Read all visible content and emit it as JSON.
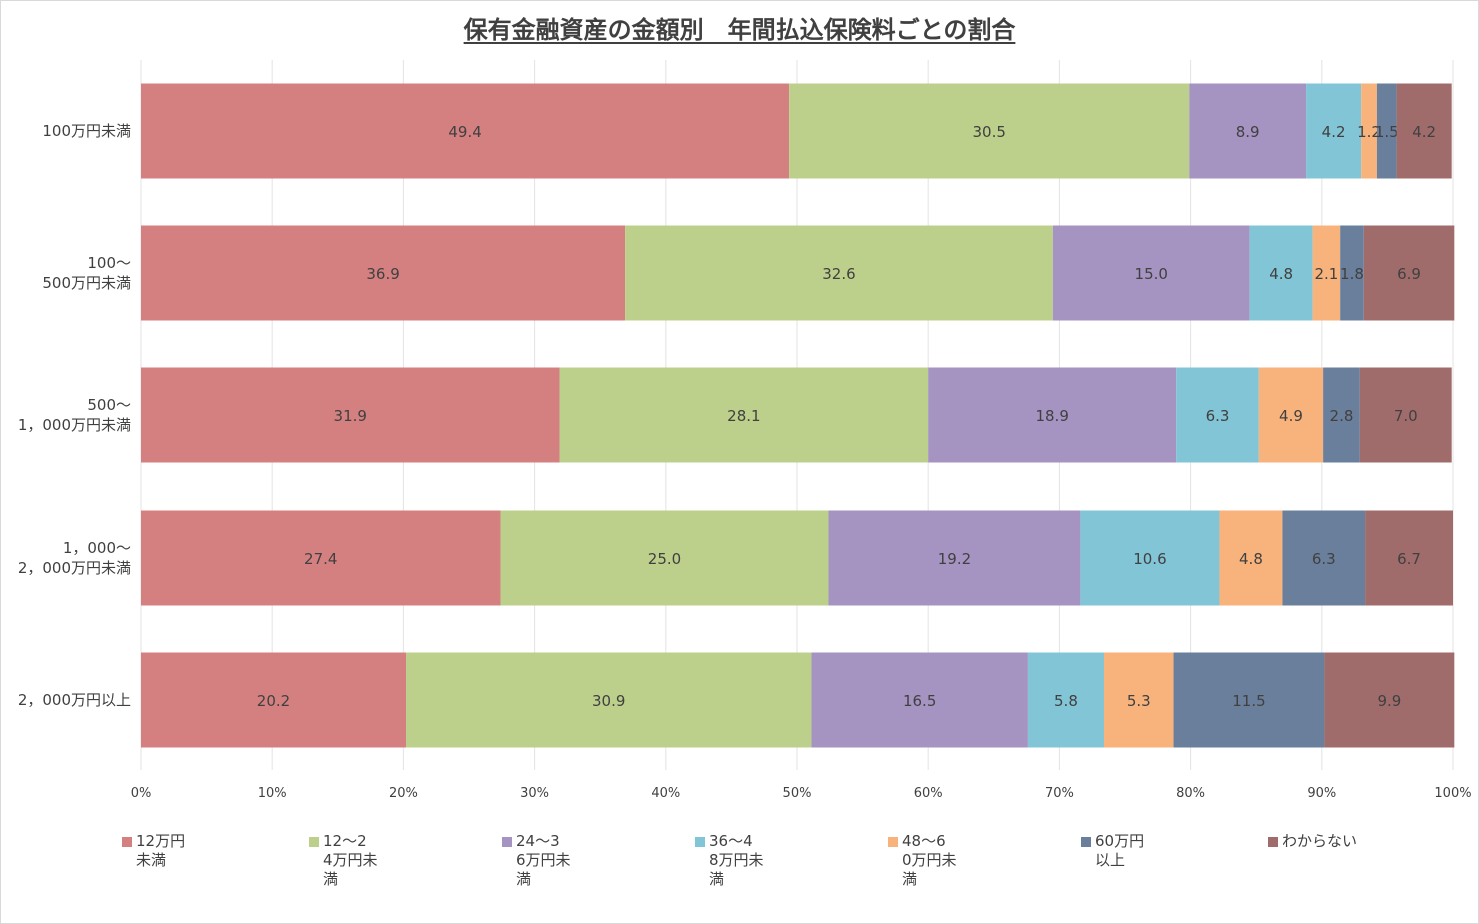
{
  "chart_data": {
    "type": "bar",
    "orientation": "horizontal",
    "stacked": true,
    "title": "保有金融資産の金額別　年間払込保険料ごとの割合",
    "categories": [
      "100万円未満",
      "100～\n500万円未満",
      "500～\n1，000万円未満",
      "1，000～\n2，000万円未満",
      "2，000万円以上"
    ],
    "series": [
      {
        "name": "12万円未満",
        "legend": "12万円\n未満",
        "color": "#d48080",
        "values": [
          49.4,
          36.9,
          31.9,
          27.4,
          20.2
        ]
      },
      {
        "name": "12～24万円未満",
        "legend": "12～2\n4万円未\n満",
        "color": "#bcd08b",
        "values": [
          30.5,
          32.6,
          28.1,
          25.0,
          30.9
        ]
      },
      {
        "name": "24～36万円未満",
        "legend": "24～3\n6万円未\n満",
        "color": "#a593c2",
        "values": [
          8.9,
          15.0,
          18.9,
          19.2,
          16.5
        ]
      },
      {
        "name": "36～48万円未満",
        "legend": "36～4\n8万円未\n満",
        "color": "#82c5d6",
        "values": [
          4.2,
          4.8,
          6.3,
          10.6,
          5.8
        ]
      },
      {
        "name": "48～60万円未満",
        "legend": "48～6\n0万円未\n満",
        "color": "#f8b37d",
        "values": [
          1.2,
          2.1,
          4.9,
          4.8,
          5.3
        ]
      },
      {
        "name": "60万円以上",
        "legend": "60万円\n以上",
        "color": "#6a7f9c",
        "values": [
          1.5,
          1.8,
          2.8,
          6.3,
          11.5
        ]
      },
      {
        "name": "わからない",
        "legend": "わからない",
        "color": "#a06b6b",
        "values": [
          4.2,
          6.9,
          7.0,
          6.7,
          9.9
        ]
      }
    ],
    "xaxis": {
      "ticks": [
        "0%",
        "10%",
        "20%",
        "30%",
        "40%",
        "50%",
        "60%",
        "70%",
        "80%",
        "90%",
        "100%"
      ],
      "range": [
        0,
        100
      ]
    },
    "grid": true,
    "legend_position": "bottom"
  }
}
